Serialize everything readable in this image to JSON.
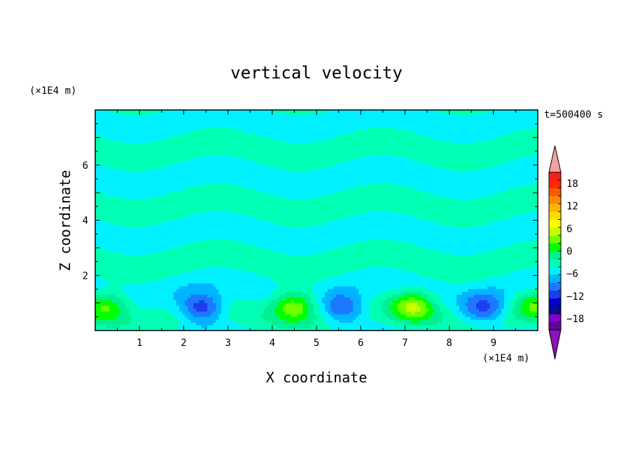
{
  "chart_data": {
    "type": "heatmap",
    "title": "vertical velocity",
    "xlabel": "X coordinate",
    "ylabel": "Z coordinate",
    "x_unit": "(×1E4 m)",
    "y_unit": "(×1E4 m)",
    "time_label": "t=500400 s",
    "xlim": [
      0,
      10
    ],
    "ylim": [
      0,
      8
    ],
    "x_ticks": [
      "1",
      "2",
      "3",
      "4",
      "5",
      "6",
      "7",
      "8",
      "9"
    ],
    "x_tick_values": [
      1,
      2,
      3,
      4,
      5,
      6,
      7,
      8,
      9
    ],
    "y_ticks": [
      "2",
      "4",
      "6"
    ],
    "y_tick_values": [
      2,
      4,
      6
    ],
    "colorbar": {
      "labels": [
        "18",
        "12",
        "6",
        "0",
        "−6",
        "−12",
        "−18"
      ],
      "label_values": [
        18,
        12,
        6,
        0,
        -6,
        -12,
        -18
      ],
      "min": -21,
      "max": 21,
      "step": 3,
      "level_colors": [
        "#5a0a9a",
        "#8a00c8",
        "#0a0a8c",
        "#0000d0",
        "#1e3cf0",
        "#1e78ff",
        "#00b4ff",
        "#00f0ff",
        "#00ffb4",
        "#00f090",
        "#00ff00",
        "#70ff00",
        "#c8ff00",
        "#ffff00",
        "#ffdc00",
        "#ffb400",
        "#ff8c00",
        "#ff5a00",
        "#ff2800",
        "#f51e1e"
      ],
      "over_color": "#f5a0a0",
      "under_color": "#8c14b4"
    },
    "features": [
      {
        "name": "updraft",
        "x": 0.25,
        "z": 0.9,
        "peak": 9
      },
      {
        "name": "downdraft",
        "x": 2.4,
        "z": 0.85,
        "peak": -12
      },
      {
        "name": "updraft",
        "x": 4.5,
        "z": 0.9,
        "peak": 12
      },
      {
        "name": "downdraft",
        "x": 5.6,
        "z": 0.8,
        "peak": -10
      },
      {
        "name": "updraft",
        "x": 7.2,
        "z": 0.9,
        "peak": 12
      },
      {
        "name": "downdraft",
        "x": 8.8,
        "z": 0.8,
        "peak": -10
      },
      {
        "name": "updraft",
        "x": 9.95,
        "z": 0.9,
        "peak": 8
      }
    ]
  }
}
